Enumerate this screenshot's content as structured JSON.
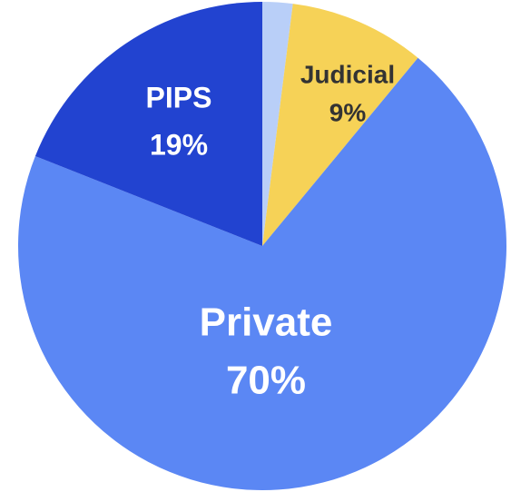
{
  "chart_data": {
    "type": "pie",
    "categories": [
      null,
      "Judicial",
      "Private",
      "PIPS"
    ],
    "values": [
      2,
      9,
      70,
      19
    ],
    "value_labels": [
      null,
      "9%",
      "70%",
      "19%"
    ],
    "colors": [
      "#b9cff8",
      "#f6d257",
      "#5b87f4",
      "#2243d0"
    ]
  }
}
